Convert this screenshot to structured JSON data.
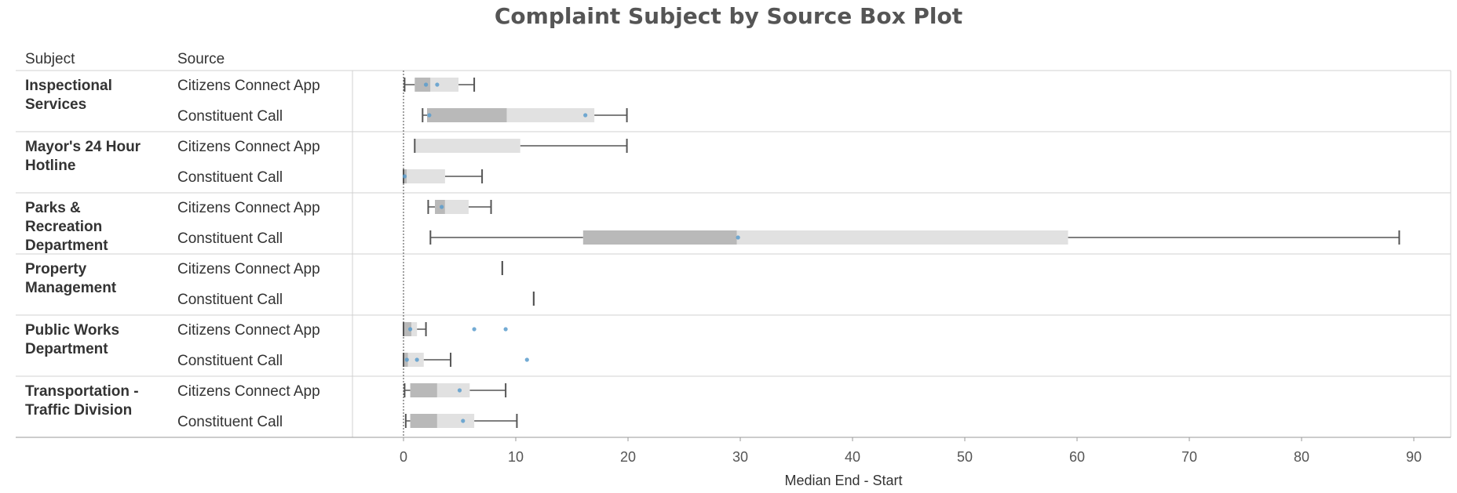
{
  "chart_data": {
    "type": "boxplot",
    "title": "Complaint Subject by Source Box Plot",
    "row_headers": [
      "Subject",
      "Source"
    ],
    "xlabel": "Median End - Start",
    "xlim": [
      0,
      90
    ],
    "x_ticks": [
      0,
      10,
      20,
      30,
      40,
      50,
      60,
      70,
      80,
      90
    ],
    "reference_line": 0,
    "colors": {
      "lower_box": "#b9b9b9",
      "upper_box": "#e1e1e1",
      "whisker": "#555555",
      "point": "#5b9ccc"
    },
    "groups": [
      {
        "subject": "Inspectional Services",
        "subject_lines": [
          "Inspectional",
          "Services"
        ],
        "rows": [
          {
            "source": "Citizens Connect App",
            "min": 0.1,
            "q1": 1.0,
            "median": 2.4,
            "q3": 4.9,
            "max": 6.3,
            "points": [
              2.0,
              3.0
            ]
          },
          {
            "source": "Constituent Call",
            "min": 1.7,
            "q1": 2.1,
            "median": 9.2,
            "q3": 17.0,
            "max": 19.9,
            "points": [
              2.3,
              16.2
            ]
          }
        ]
      },
      {
        "subject": "Mayor's 24 Hour Hotline",
        "subject_lines": [
          "Mayor's 24 Hour",
          "Hotline"
        ],
        "rows": [
          {
            "source": "Citizens Connect App",
            "min": 1.0,
            "q1": 1.0,
            "median": 1.0,
            "q3": 10.4,
            "max": 19.9,
            "points": []
          },
          {
            "source": "Constituent Call",
            "min": 0.0,
            "q1": 0.0,
            "median": 0.3,
            "q3": 3.7,
            "max": 7.0,
            "points": [
              0.1
            ]
          }
        ]
      },
      {
        "subject": "Parks & Recreation Department",
        "subject_lines": [
          "Parks &",
          "Recreation",
          "Department"
        ],
        "rows": [
          {
            "source": "Citizens Connect App",
            "min": 2.2,
            "q1": 2.8,
            "median": 3.7,
            "q3": 5.8,
            "max": 7.8,
            "points": [
              3.4
            ]
          },
          {
            "source": "Constituent Call",
            "min": 2.4,
            "q1": 16.0,
            "median": 29.7,
            "q3": 59.2,
            "max": 88.7,
            "points": [
              29.8
            ]
          }
        ]
      },
      {
        "subject": "Property Management",
        "subject_lines": [
          "Property",
          "Management"
        ],
        "rows": [
          {
            "source": "Citizens Connect App",
            "min": 8.8,
            "q1": 8.8,
            "median": 8.8,
            "q3": 8.8,
            "max": 8.8,
            "points": []
          },
          {
            "source": "Constituent Call",
            "min": 11.6,
            "q1": 11.6,
            "median": 11.6,
            "q3": 11.6,
            "max": 11.6,
            "points": []
          }
        ]
      },
      {
        "subject": "Public Works Department",
        "subject_lines": [
          "Public Works",
          "Department"
        ],
        "rows": [
          {
            "source": "Citizens Connect App",
            "min": 0.0,
            "q1": 0.0,
            "median": 0.7,
            "q3": 1.2,
            "max": 2.0,
            "points": [
              0.6,
              6.3,
              9.1
            ]
          },
          {
            "source": "Constituent Call",
            "min": 0.0,
            "q1": 0.0,
            "median": 0.4,
            "q3": 1.8,
            "max": 4.2,
            "points": [
              0.3,
              1.2,
              11.0
            ]
          }
        ]
      },
      {
        "subject": "Transportation - Traffic Division",
        "subject_lines": [
          "Transportation -",
          "Traffic Division"
        ],
        "rows": [
          {
            "source": "Citizens Connect App",
            "min": 0.1,
            "q1": 0.6,
            "median": 3.0,
            "q3": 5.9,
            "max": 9.1,
            "points": [
              5.0
            ]
          },
          {
            "source": "Constituent Call",
            "min": 0.2,
            "q1": 0.6,
            "median": 3.0,
            "q3": 6.3,
            "max": 10.1,
            "points": [
              5.3
            ]
          }
        ]
      }
    ]
  }
}
